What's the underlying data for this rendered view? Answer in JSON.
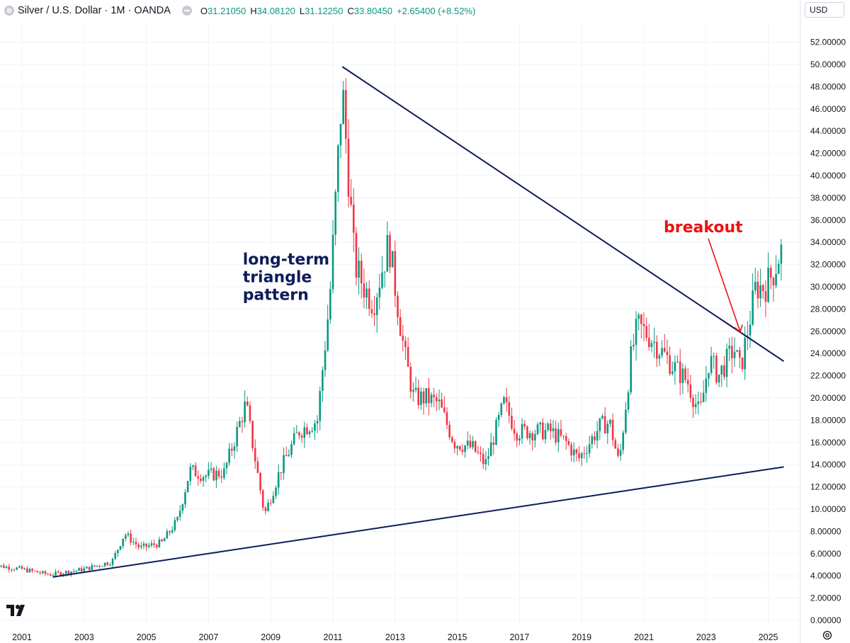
{
  "header": {
    "symbol_title": "Silver / U.S. Dollar · 1M · OANDA",
    "open_key": "O",
    "open": "31.21050",
    "high_key": "H",
    "high": "34.08120",
    "low_key": "L",
    "low": "31.12250",
    "close_key": "C",
    "close": "33.80450",
    "change": "+2.65400 (+8.52%)"
  },
  "currency_label": "USD",
  "colors": {
    "up": "#089981",
    "down": "#f23645",
    "trendline": "#0c1c5a",
    "annotation_red": "#f01010",
    "annotation_blue": "#0c1c5a"
  },
  "chart_data": {
    "type": "candlestick",
    "interval": "1M",
    "y_ticks": [
      "0.00000",
      "2.00000",
      "4.00000",
      "6.00000",
      "8.00000",
      "10.00000",
      "12.00000",
      "14.00000",
      "16.00000",
      "18.00000",
      "20.00000",
      "22.00000",
      "24.00000",
      "26.00000",
      "28.00000",
      "30.00000",
      "32.00000",
      "34.00000",
      "36.00000",
      "38.00000",
      "40.00000",
      "42.00000",
      "44.00000",
      "46.00000",
      "48.00000",
      "50.00000",
      "52.00000"
    ],
    "x_ticks": [
      "2001",
      "2003",
      "2005",
      "2007",
      "2009",
      "2011",
      "2013",
      "2015",
      "2017",
      "2019",
      "2021",
      "2023",
      "2025"
    ],
    "ylim": [
      0,
      52
    ],
    "price_anchors": [
      [
        2000.0,
        5.0
      ],
      [
        2001.0,
        4.6
      ],
      [
        2001.9,
        4.1
      ],
      [
        2003.0,
        4.6
      ],
      [
        2003.9,
        5.3
      ],
      [
        2004.3,
        7.8
      ],
      [
        2004.8,
        6.5
      ],
      [
        2005.5,
        7.0
      ],
      [
        2006.0,
        9.0
      ],
      [
        2006.4,
        13.5
      ],
      [
        2006.9,
        13.0
      ],
      [
        2007.5,
        13.3
      ],
      [
        2008.2,
        19.5
      ],
      [
        2008.8,
        9.5
      ],
      [
        2009.3,
        13.5
      ],
      [
        2009.9,
        17.0
      ],
      [
        2010.5,
        18.0
      ],
      [
        2010.9,
        29.0
      ],
      [
        2011.3,
        48.0
      ],
      [
        2011.7,
        32.0
      ],
      [
        2012.0,
        30.0
      ],
      [
        2012.3,
        28.5
      ],
      [
        2012.8,
        34.0
      ],
      [
        2013.3,
        24.0
      ],
      [
        2013.6,
        20.0
      ],
      [
        2014.0,
        20.0
      ],
      [
        2014.4,
        19.5
      ],
      [
        2014.9,
        16.0
      ],
      [
        2015.5,
        15.5
      ],
      [
        2015.9,
        14.0
      ],
      [
        2016.5,
        19.5
      ],
      [
        2016.9,
        17.0
      ],
      [
        2017.5,
        17.0
      ],
      [
        2018.0,
        17.0
      ],
      [
        2018.5,
        16.0
      ],
      [
        2018.9,
        14.5
      ],
      [
        2019.6,
        17.5
      ],
      [
        2019.9,
        17.8
      ],
      [
        2020.2,
        14.0
      ],
      [
        2020.6,
        24.0
      ],
      [
        2020.8,
        26.5
      ],
      [
        2021.2,
        25.5
      ],
      [
        2021.9,
        23.0
      ],
      [
        2022.4,
        21.5
      ],
      [
        2022.8,
        18.5
      ],
      [
        2023.1,
        23.5
      ],
      [
        2023.4,
        22.0
      ],
      [
        2023.9,
        24.5
      ],
      [
        2024.1,
        22.5
      ],
      [
        2024.6,
        30.0
      ],
      [
        2024.9,
        30.0
      ],
      [
        2025.2,
        31.5
      ],
      [
        2025.45,
        33.8
      ]
    ],
    "trendlines": [
      {
        "name": "upper",
        "from": [
          2011.3,
          49.8
        ],
        "to": [
          2025.5,
          23.3
        ]
      },
      {
        "name": "lower",
        "from": [
          2002.0,
          3.9
        ],
        "to": [
          2025.5,
          13.8
        ]
      }
    ],
    "annotations": [
      {
        "text": [
          "long-term",
          "triangle",
          "pattern"
        ],
        "at": [
          2008.1,
          32.0
        ],
        "color": "blue"
      },
      {
        "text": [
          "breakout"
        ],
        "at": [
          2024.1,
          25.7
        ],
        "color": "red"
      }
    ]
  },
  "annotation_text": {
    "triangle_line1": "long-term",
    "triangle_line2": "triangle",
    "triangle_line3": "pattern",
    "breakout": "breakout"
  }
}
